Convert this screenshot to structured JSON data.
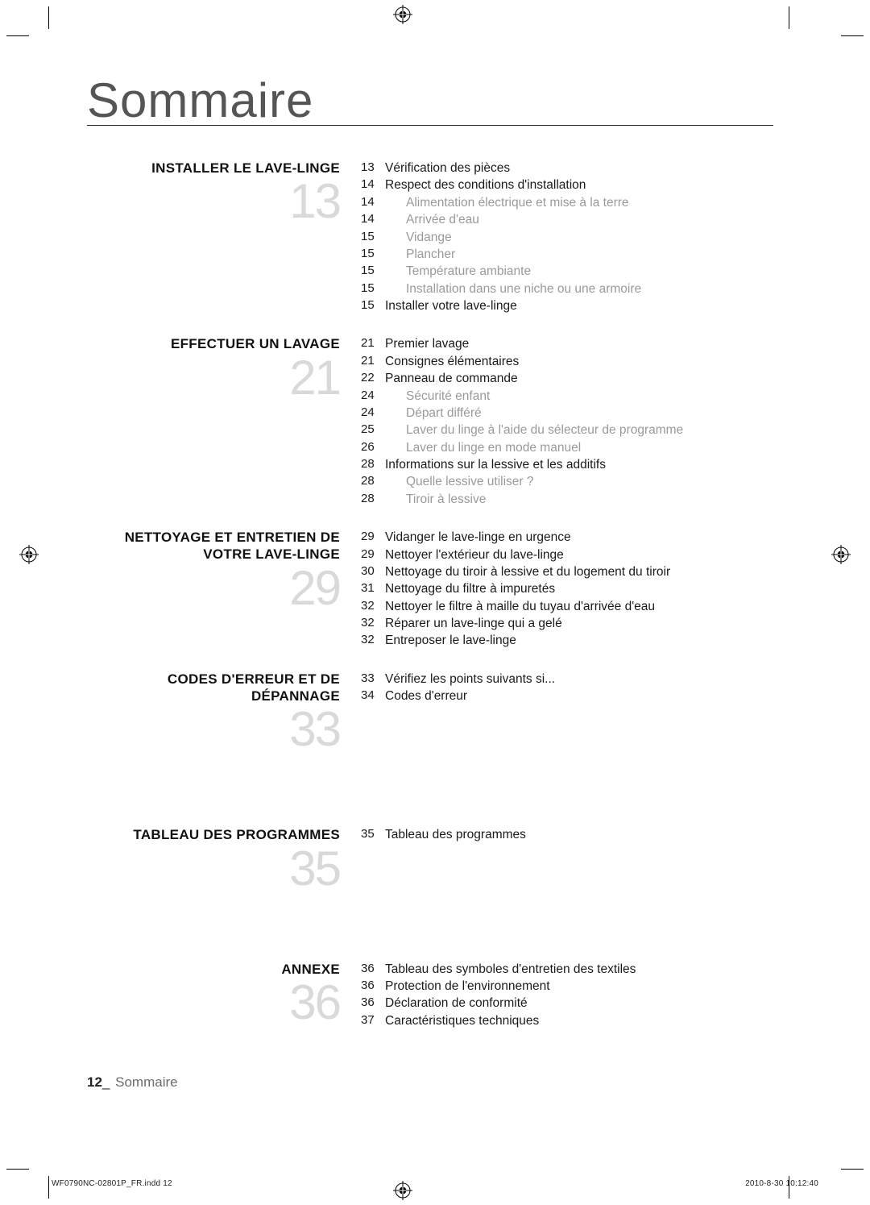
{
  "title": "Sommaire",
  "footer": {
    "page_number": "12",
    "separator": "_",
    "label": "Sommaire"
  },
  "slug": {
    "file": "WF0790NC-02801P_FR.indd   12",
    "datetime": "2010-8-30   10:12:40"
  },
  "colors": {
    "title_color": "#555555",
    "rule_color": "#222222",
    "heading_color": "#111111",
    "bignum_color": "#d9d9d9",
    "subitem_color": "#9a9a9a",
    "text_color": "#1a1a1a",
    "background": "#ffffff"
  },
  "typography": {
    "title_fontsize_pt": 45,
    "heading_fontsize_pt": 13,
    "bignum_fontsize_pt": 45,
    "body_fontsize_pt": 11.5,
    "footer_fontsize_pt": 13,
    "slug_fontsize_pt": 7.5
  },
  "sections": [
    {
      "heading": "INSTALLER LE LAVE-LINGE",
      "big_number": "13",
      "entries": [
        {
          "page": "13",
          "text": "Vérification des pièces",
          "sub": false
        },
        {
          "page": "14",
          "text": "Respect des conditions d'installation",
          "sub": false
        },
        {
          "page": "14",
          "text": "Alimentation électrique et mise à la terre",
          "sub": true
        },
        {
          "page": "14",
          "text": "Arrivée d'eau",
          "sub": true
        },
        {
          "page": "15",
          "text": "Vidange",
          "sub": true
        },
        {
          "page": "15",
          "text": "Plancher",
          "sub": true
        },
        {
          "page": "15",
          "text": "Température ambiante",
          "sub": true
        },
        {
          "page": "15",
          "text": "Installation dans une niche ou une armoire",
          "sub": true
        },
        {
          "page": "15",
          "text": "Installer votre lave-linge",
          "sub": false
        }
      ]
    },
    {
      "heading": "EFFECTUER UN LAVAGE",
      "big_number": "21",
      "entries": [
        {
          "page": "21",
          "text": "Premier lavage",
          "sub": false
        },
        {
          "page": "21",
          "text": "Consignes élémentaires",
          "sub": false
        },
        {
          "page": "22",
          "text": "Panneau de commande",
          "sub": false
        },
        {
          "page": "24",
          "text": "Sécurité enfant",
          "sub": true
        },
        {
          "page": "24",
          "text": "Départ différé",
          "sub": true
        },
        {
          "page": "25",
          "text": "Laver du linge à l'aide du sélecteur de programme",
          "sub": true
        },
        {
          "page": "26",
          "text": "Laver du linge en mode manuel",
          "sub": true
        },
        {
          "page": "28",
          "text": "Informations sur la lessive et les additifs",
          "sub": false
        },
        {
          "page": "28",
          "text": "Quelle lessive utiliser ?",
          "sub": true
        },
        {
          "page": "28",
          "text": "Tiroir à lessive",
          "sub": true
        }
      ]
    },
    {
      "heading": "NETTOYAGE ET ENTRETIEN DE VOTRE LAVE-LINGE",
      "big_number": "29",
      "entries": [
        {
          "page": "29",
          "text": "Vidanger le lave-linge en urgence",
          "sub": false
        },
        {
          "page": "29",
          "text": "Nettoyer l'extérieur du lave-linge",
          "sub": false
        },
        {
          "page": "30",
          "text": "Nettoyage du tiroir à lessive et du logement du tiroir",
          "sub": false
        },
        {
          "page": "31",
          "text": "Nettoyage du filtre à impuretés",
          "sub": false
        },
        {
          "page": "32",
          "text": "Nettoyer le filtre à maille du tuyau d'arrivée d'eau",
          "sub": false
        },
        {
          "page": "32",
          "text": "Réparer un lave-linge qui a gelé",
          "sub": false
        },
        {
          "page": "32",
          "text": "Entreposer le lave-linge",
          "sub": false
        }
      ]
    },
    {
      "heading": "CODES D'ERREUR ET DE DÉPANNAGE",
      "big_number": "33",
      "entries": [
        {
          "page": "33",
          "text": "Vérifiez les points suivants si...",
          "sub": false
        },
        {
          "page": "34",
          "text": "Codes d'erreur",
          "sub": false
        }
      ]
    },
    {
      "heading": "TABLEAU DES PROGRAMMES",
      "big_number": "35",
      "entries": [
        {
          "page": "35",
          "text": "Tableau des programmes",
          "sub": false
        }
      ]
    },
    {
      "heading": "ANNEXE",
      "big_number": "36",
      "entries": [
        {
          "page": "36",
          "text": "Tableau des symboles d'entretien des textiles",
          "sub": false
        },
        {
          "page": "36",
          "text": "Protection de l'environnement",
          "sub": false
        },
        {
          "page": "36",
          "text": "Déclaration de conformité",
          "sub": false
        },
        {
          "page": "37",
          "text": "Caractéristiques techniques",
          "sub": false
        }
      ]
    }
  ]
}
